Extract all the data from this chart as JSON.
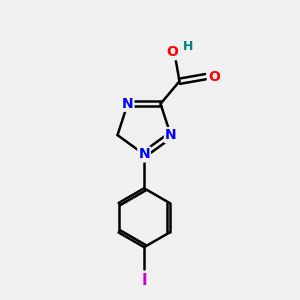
{
  "background_color": "#f0f0f0",
  "atom_colors": {
    "C": "#000000",
    "N": "#0000ff",
    "O": "#ff0000",
    "H": "#008080",
    "I": "#cc00cc"
  },
  "bond_color": "#000000",
  "bond_width": 1.8,
  "fig_size": [
    3.0,
    3.0
  ],
  "dpi": 100
}
